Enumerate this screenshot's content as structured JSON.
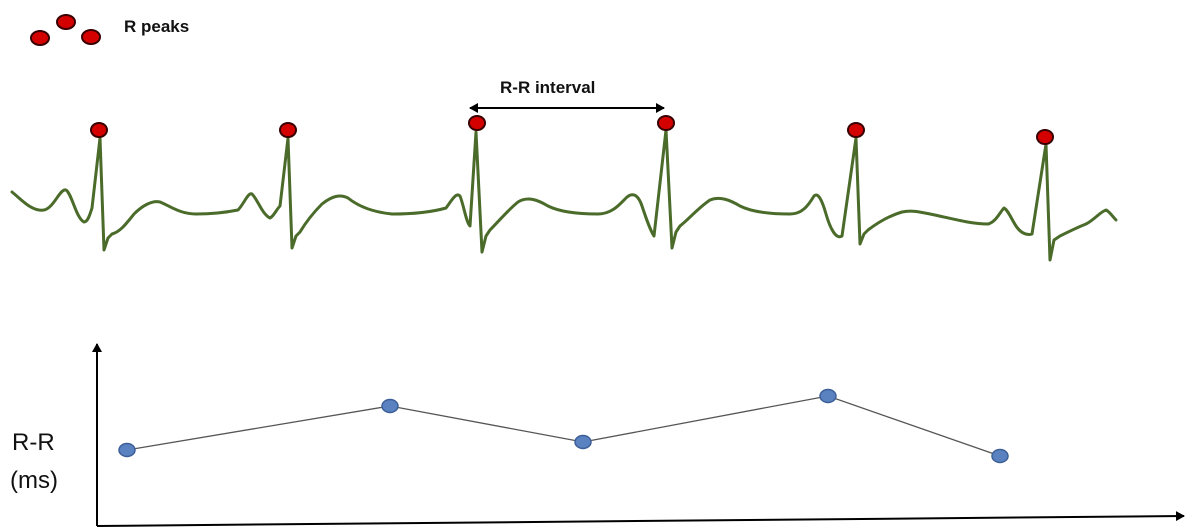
{
  "legend": {
    "label": "R peaks"
  },
  "interval_annotation": {
    "label": "R-R interval"
  },
  "ecg": {
    "peak_count": 6
  },
  "rr_plot": {
    "y_label_line1": "R-R",
    "y_label_line2": "(ms)"
  },
  "colors": {
    "ecg_line": "#4a6b2a",
    "peak_fill": "#d40000",
    "peak_stroke": "#3a0000",
    "rr_point_fill": "#5b82c0",
    "rr_point_stroke": "#3d5f99",
    "rr_line": "#555555",
    "axis": "#000000"
  }
}
